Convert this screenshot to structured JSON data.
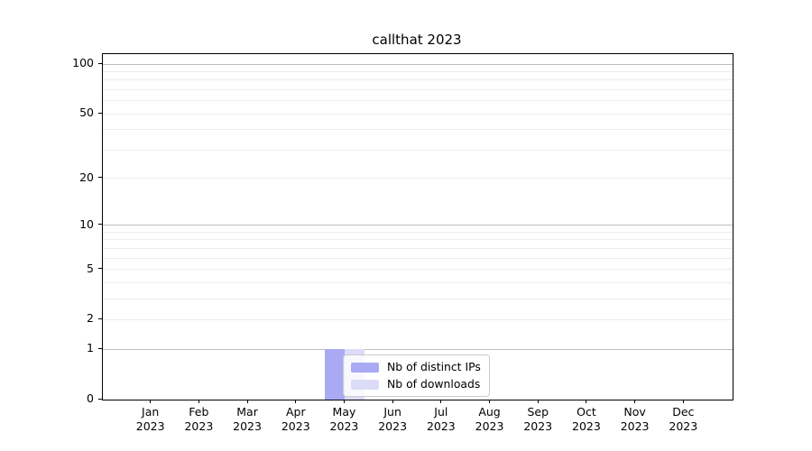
{
  "chart_data": {
    "type": "bar",
    "title": "callthat 2023",
    "categories": [
      "Jan 2023",
      "Feb 2023",
      "Mar 2023",
      "Apr 2023",
      "May 2023",
      "Jun 2023",
      "Jul 2023",
      "Aug 2023",
      "Sep 2023",
      "Oct 2023",
      "Nov 2023",
      "Dec 2023"
    ],
    "series": [
      {
        "name": "Nb of distinct IPs",
        "color": "#a9aaf3",
        "values": [
          0,
          0,
          0,
          0,
          1,
          0,
          0,
          0,
          0,
          0,
          0,
          0
        ]
      },
      {
        "name": "Nb of downloads",
        "color": "#dcdcf8",
        "values": [
          0,
          0,
          0,
          0,
          1,
          0,
          0,
          0,
          0,
          0,
          0,
          0
        ]
      }
    ],
    "xlabel": "",
    "ylabel": "",
    "yscale": "log1p",
    "ylim": [
      0,
      113
    ],
    "yticks": [
      0,
      1,
      2,
      5,
      10,
      20,
      50,
      100
    ],
    "major_gridlines": [
      1,
      10,
      100
    ],
    "minor_gridlines": [
      2,
      3,
      4,
      5,
      6,
      7,
      8,
      9,
      20,
      30,
      40,
      50,
      60,
      70,
      80,
      90
    ],
    "grid": true,
    "legend_position": "lower center"
  },
  "colors": {
    "axis": "#000000",
    "major_grid": "#bdbdbd",
    "minor_grid": "#ececec",
    "legend_border": "#cccccc",
    "background": "#ffffff"
  }
}
